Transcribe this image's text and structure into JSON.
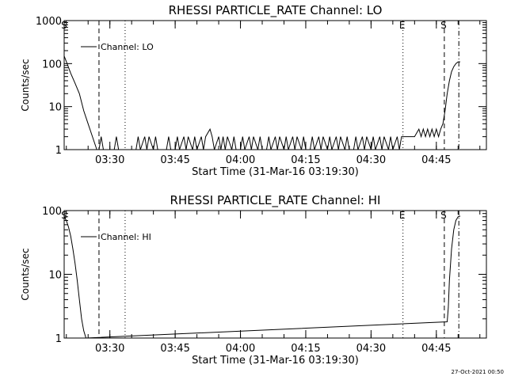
{
  "stamp": "27-Oct-2021 00:50",
  "chart_data": [
    {
      "type": "line",
      "title": "RHESSI PARTICLE_RATE Channel: LO",
      "xlabel": "Start Time (31-Mar-16 03:19:30)",
      "ylabel": "Counts/sec",
      "y_scale": "log",
      "ylim": [
        1,
        1000
      ],
      "xlim": [
        "03:19:30",
        "04:56:30"
      ],
      "y_ticks": [
        1,
        10,
        100,
        1000
      ],
      "y_tick_labels": [
        "1",
        "10",
        "100",
        "1000"
      ],
      "x_ticks": [
        "03:30",
        "03:45",
        "04:00",
        "04:15",
        "04:30",
        "04:45"
      ],
      "x_tick_labels": [
        "03:30",
        "03:45",
        "04:00",
        "04:15",
        "04:30",
        "04:45"
      ],
      "legend": {
        "entries": [
          "Channel: LO"
        ],
        "placement": "top-left"
      },
      "markers": [
        {
          "label": "S",
          "time": "03:19:40",
          "style": "none"
        },
        {
          "label": "",
          "time": "03:27:30",
          "style": "dashed"
        },
        {
          "label": "",
          "time": "03:33:30",
          "style": "dotted"
        },
        {
          "label": "E",
          "time": "04:37:20",
          "style": "dotted"
        },
        {
          "label": "S",
          "time": "04:46:50",
          "style": "dashed"
        },
        {
          "label": "",
          "time": "04:50:10",
          "style": "dashdot"
        }
      ],
      "series": [
        {
          "name": "Channel: LO",
          "x": [
            "03:19:30",
            "03:20:10",
            "03:21:00",
            "03:22:00",
            "03:23:00",
            "03:24:00",
            "03:25:00",
            "03:26:00",
            "03:27:00",
            "03:27:30",
            "03:28:00",
            "03:28:30",
            "03:29:00",
            "03:31:00",
            "03:31:30",
            "03:32:00",
            "03:36:00",
            "03:36:30",
            "03:37:00",
            "03:38:00",
            "03:38:30",
            "03:39:00",
            "03:40:00",
            "03:40:30",
            "03:41:00",
            "03:43:00",
            "03:43:30",
            "03:44:00",
            "03:45:00",
            "03:45:30",
            "03:46:00",
            "03:47:00",
            "03:47:30",
            "03:48:00",
            "03:49:00",
            "03:49:30",
            "03:50:00",
            "03:51:00",
            "03:51:30",
            "03:52:00",
            "03:53:00",
            "03:53:30",
            "03:54:00",
            "03:55:00",
            "03:55:30",
            "03:56:00",
            "03:56:30",
            "03:57:00",
            "03:58:00",
            "03:58:30",
            "03:59:00",
            "04:00:00",
            "04:00:30",
            "04:01:00",
            "04:02:00",
            "04:02:30",
            "04:03:00",
            "04:04:00",
            "04:04:30",
            "04:05:00",
            "04:06:00",
            "04:06:30",
            "04:07:00",
            "04:08:00",
            "04:08:30",
            "04:09:00",
            "04:10:00",
            "04:10:30",
            "04:11:00",
            "04:12:00",
            "04:12:30",
            "04:13:00",
            "04:14:00",
            "04:14:30",
            "04:15:00",
            "04:16:00",
            "04:16:30",
            "04:17:00",
            "04:18:00",
            "04:18:30",
            "04:19:00",
            "04:20:00",
            "04:20:30",
            "04:21:00",
            "04:22:00",
            "04:22:30",
            "04:23:00",
            "04:24:00",
            "04:24:30",
            "04:25:00",
            "04:26:00",
            "04:26:30",
            "04:27:00",
            "04:28:00",
            "04:28:30",
            "04:29:00",
            "04:30:00",
            "04:30:30",
            "04:31:00",
            "04:32:00",
            "04:32:30",
            "04:33:00",
            "04:34:00",
            "04:34:30",
            "04:35:00",
            "04:36:00",
            "04:36:30",
            "04:37:00",
            "04:38:00",
            "04:39:00",
            "04:40:00",
            "04:41:00",
            "04:41:30",
            "04:42:00",
            "04:42:30",
            "04:43:00",
            "04:43:30",
            "04:44:00",
            "04:44:30",
            "04:45:00",
            "04:45:30",
            "04:46:00",
            "04:46:30",
            "04:47:00",
            "04:47:30",
            "04:48:00",
            "04:48:30",
            "04:49:00",
            "04:49:30",
            "04:50:00",
            "04:50:30"
          ],
          "y": [
            150,
            100,
            60,
            35,
            20,
            8,
            4,
            2,
            1,
            1,
            2,
            1,
            1,
            1,
            2,
            1,
            1,
            2,
            1,
            2,
            1,
            2,
            1,
            2,
            1,
            1,
            2,
            1,
            1,
            2,
            1,
            2,
            1,
            2,
            1,
            2,
            1,
            2,
            1,
            2,
            3,
            2,
            1,
            2,
            1,
            2,
            1,
            2,
            1,
            2,
            1,
            1,
            2,
            1,
            2,
            1,
            2,
            1,
            2,
            1,
            1,
            2,
            1,
            2,
            1,
            2,
            1,
            2,
            1,
            2,
            1,
            2,
            1,
            2,
            1,
            1,
            2,
            1,
            2,
            1,
            2,
            1,
            2,
            1,
            2,
            1,
            2,
            1,
            2,
            1,
            1,
            2,
            1,
            2,
            1,
            2,
            1,
            2,
            1,
            2,
            1,
            2,
            1,
            2,
            1,
            2,
            1,
            2,
            2,
            2,
            2,
            3,
            2,
            3,
            2,
            3,
            2,
            3,
            2,
            3,
            2,
            3,
            4,
            8,
            20,
            40,
            65,
            85,
            100,
            110,
            110
          ]
        }
      ]
    },
    {
      "type": "line",
      "title": "RHESSI PARTICLE_RATE Channel: HI",
      "xlabel": "Start Time (31-Mar-16 03:19:30)",
      "ylabel": "Counts/sec",
      "y_scale": "log",
      "ylim": [
        1,
        100
      ],
      "xlim": [
        "03:19:30",
        "04:56:30"
      ],
      "y_ticks": [
        1,
        10,
        100
      ],
      "y_tick_labels": [
        "1",
        "10",
        "100"
      ],
      "x_ticks": [
        "03:30",
        "03:45",
        "04:00",
        "04:15",
        "04:30",
        "04:45"
      ],
      "x_tick_labels": [
        "03:30",
        "03:45",
        "04:00",
        "04:15",
        "04:30",
        "04:45"
      ],
      "legend": {
        "entries": [
          "Channel: HI"
        ],
        "placement": "top-left"
      },
      "markers": [
        {
          "label": "S",
          "time": "03:19:40",
          "style": "none"
        },
        {
          "label": "",
          "time": "03:27:30",
          "style": "dashed"
        },
        {
          "label": "",
          "time": "03:33:30",
          "style": "dotted"
        },
        {
          "label": "E",
          "time": "04:37:20",
          "style": "dotted"
        },
        {
          "label": "S",
          "time": "04:46:50",
          "style": "dashed"
        },
        {
          "label": "",
          "time": "04:50:10",
          "style": "dashdot"
        }
      ],
      "series": [
        {
          "name": "Channel: HI",
          "x": [
            "03:19:30",
            "03:20:00",
            "03:20:30",
            "03:21:00",
            "03:21:30",
            "03:22:00",
            "03:22:30",
            "03:23:00",
            "03:23:30",
            "03:24:00",
            "03:24:30",
            "04:47:30",
            "04:47:45",
            "04:48:00",
            "04:48:30",
            "04:49:00",
            "04:49:30",
            "04:50:00",
            "04:50:30"
          ],
          "y": [
            80,
            70,
            55,
            40,
            25,
            15,
            8,
            4,
            2,
            1.3,
            1,
            1.8,
            3,
            8,
            25,
            50,
            70,
            80,
            82
          ]
        }
      ]
    }
  ]
}
